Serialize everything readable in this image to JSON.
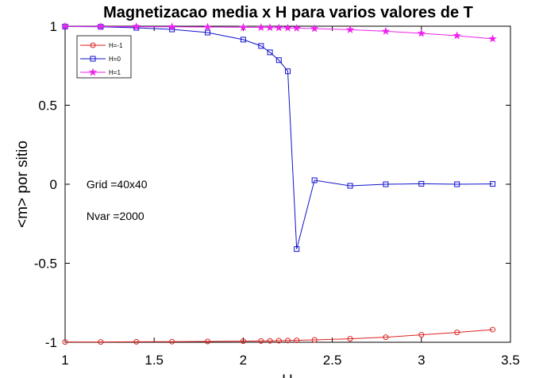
{
  "chart_data": {
    "type": "line",
    "title": "Magnetizacao media x H para varios valores de T",
    "xlabel": "H",
    "ylabel": "<m> por sitio",
    "xlim": [
      1,
      3.5
    ],
    "ylim": [
      -1,
      1
    ],
    "xticks": [
      1,
      1.5,
      2,
      2.5,
      3,
      3.5
    ],
    "xtick_labels": [
      "1",
      "1.5",
      "2",
      "2.5",
      "3",
      "3.5"
    ],
    "yticks": [
      -1,
      -0.5,
      0,
      0.5,
      1
    ],
    "ytick_labels": [
      "-1",
      "-0.5",
      "0",
      "0.5",
      "1"
    ],
    "grid": false,
    "legend_position": "top-left",
    "annotations": [
      {
        "text": "Grid =40x40",
        "x": 1.12,
        "y": 0
      },
      {
        "text": "Nvar =2000",
        "x": 1.12,
        "y": -0.2
      }
    ],
    "series": [
      {
        "name": "H=-1",
        "color": "#dd2222",
        "marker": "circle",
        "x": [
          1.0,
          1.2,
          1.4,
          1.6,
          1.8,
          2.0,
          2.1,
          2.15,
          2.2,
          2.25,
          2.3,
          2.4,
          2.6,
          2.8,
          3.0,
          3.2,
          3.4
        ],
        "y": [
          -0.998,
          -0.998,
          -0.997,
          -0.996,
          -0.995,
          -0.993,
          -0.992,
          -0.991,
          -0.99,
          -0.989,
          -0.988,
          -0.985,
          -0.978,
          -0.968,
          -0.953,
          -0.938,
          -0.92
        ]
      },
      {
        "name": "H=0",
        "color": "#1111cc",
        "marker": "square",
        "x": [
          1.0,
          1.2,
          1.4,
          1.6,
          1.8,
          2.0,
          2.1,
          2.15,
          2.2,
          2.25,
          2.3,
          2.4,
          2.6,
          2.8,
          3.0,
          3.2,
          3.4
        ],
        "y": [
          0.998,
          0.996,
          0.99,
          0.98,
          0.96,
          0.915,
          0.875,
          0.835,
          0.785,
          0.715,
          -0.41,
          0.025,
          -0.01,
          0.0,
          0.003,
          0.0,
          0.002
        ]
      },
      {
        "name": "H=1",
        "color": "#ee22ee",
        "marker": "star",
        "x": [
          1.0,
          1.2,
          1.4,
          1.6,
          1.8,
          2.0,
          2.1,
          2.15,
          2.2,
          2.25,
          2.3,
          2.4,
          2.6,
          2.8,
          3.0,
          3.2,
          3.4
        ],
        "y": [
          0.999,
          0.998,
          0.997,
          0.996,
          0.995,
          0.993,
          0.992,
          0.991,
          0.99,
          0.989,
          0.988,
          0.985,
          0.978,
          0.968,
          0.955,
          0.94,
          0.92
        ]
      }
    ]
  }
}
